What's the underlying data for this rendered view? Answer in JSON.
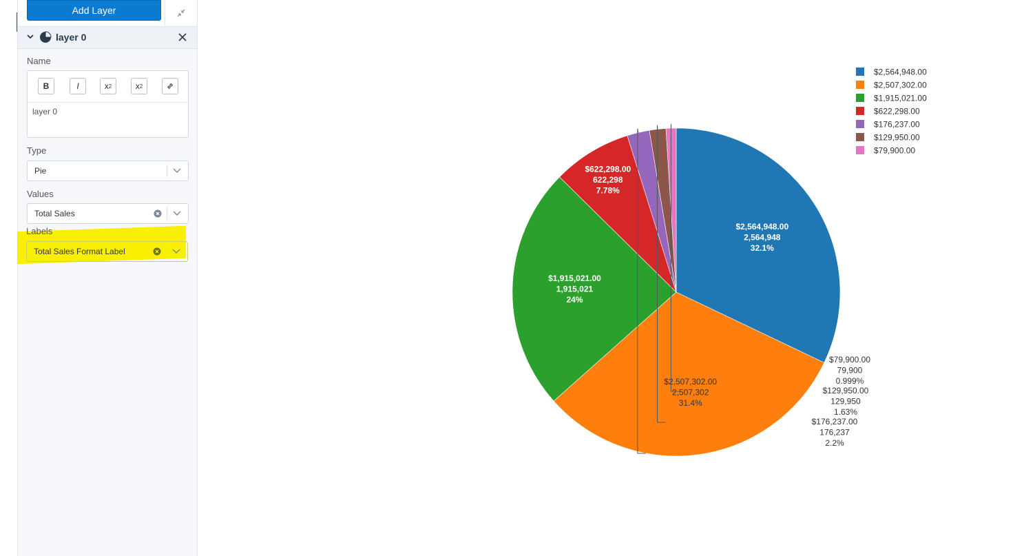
{
  "sidebar": {
    "add_layer_label": "Add Layer",
    "layer": {
      "title": "layer 0",
      "name_label": "Name",
      "toolbar": {
        "bold": "B",
        "italic": "I",
        "subscript": "x",
        "subscript_sub": "2",
        "superscript": "x",
        "superscript_sup": "2"
      },
      "name_value": "layer 0",
      "type_label": "Type",
      "type_value": "Pie",
      "values_label": "Values",
      "values_value": "Total Sales",
      "labels_label": "Labels",
      "labels_value": "Total Sales Format Label"
    }
  },
  "colors": {
    "accent": "#0a7bd0",
    "highlight": "#f8f000"
  },
  "chart_data": {
    "type": "pie",
    "legend_position": "top-right",
    "title": "",
    "series": [
      {
        "legend": "$2,564,948.00",
        "value": 2564948,
        "label_value": "2,564,948",
        "pct": "32.1%",
        "color": "#1f77b4"
      },
      {
        "legend": "$2,507,302.00",
        "value": 2507302,
        "label_value": "2,507,302",
        "pct": "31.4%",
        "color": "#ff7f0e"
      },
      {
        "legend": "$1,915,021.00",
        "value": 1915021,
        "label_value": "1,915,021",
        "pct": "24%",
        "color": "#2ca02c"
      },
      {
        "legend": "$622,298.00",
        "value": 622298,
        "label_value": "622,298",
        "pct": "7.78%",
        "color": "#d62728"
      },
      {
        "legend": "$176,237.00",
        "value": 176237,
        "label_value": "176,237",
        "pct": "2.2%",
        "color": "#9467bd"
      },
      {
        "legend": "$129,950.00",
        "value": 129950,
        "label_value": "129,950",
        "pct": "1.63%",
        "color": "#8c564b"
      },
      {
        "legend": "$79,900.00",
        "value": 79900,
        "label_value": "79,900",
        "pct": "0.999%",
        "color": "#e377c2"
      }
    ]
  }
}
